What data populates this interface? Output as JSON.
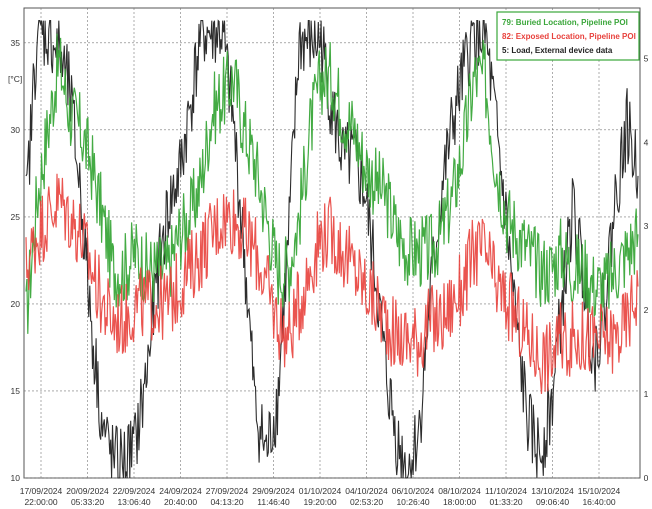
{
  "chart_data": {
    "type": "line",
    "title": "",
    "xlabel": "",
    "ylabel": "[°C]",
    "ylim": [
      10,
      37
    ],
    "y_ticks": [
      "10",
      "15",
      "20",
      "25",
      "30",
      "35"
    ],
    "y2_ticks": [
      "0",
      "1",
      "2",
      "3",
      "4",
      "5"
    ],
    "y2lim": [
      0,
      5.6
    ],
    "grid": true,
    "legend_position": "top-right",
    "x_ticks": [
      {
        "date": "17/09/2024",
        "time": "22:00:00"
      },
      {
        "date": "20/09/2024",
        "time": "05:33:20"
      },
      {
        "date": "22/09/2024",
        "time": "13:06:40"
      },
      {
        "date": "24/09/2024",
        "time": "20:40:00"
      },
      {
        "date": "27/09/2024",
        "time": "04:13:20"
      },
      {
        "date": "29/09/2024",
        "time": "11:46:40"
      },
      {
        "date": "01/10/2024",
        "time": "19:20:00"
      },
      {
        "date": "04/10/2024",
        "time": "02:53:20"
      },
      {
        "date": "06/10/2024",
        "time": "10:26:40"
      },
      {
        "date": "08/10/2024",
        "time": "18:00:00"
      },
      {
        "date": "11/10/2024",
        "time": "01:33:20"
      },
      {
        "date": "13/10/2024",
        "time": "09:06:40"
      },
      {
        "date": "15/10/2024",
        "time": "16:40:00"
      }
    ],
    "series": [
      {
        "name": "79: Buried Location, Pipeline POI",
        "color": "#3aa63a",
        "axis": "left",
        "x_days": [
          0,
          0.5,
          1,
          1.5,
          2,
          2.5,
          3,
          3.5,
          4,
          4.5,
          5,
          5.5,
          6,
          6.5,
          7,
          7.5,
          8,
          8.5,
          9,
          9.5,
          10,
          10.5,
          11,
          11.5,
          12,
          12.5,
          13,
          13.5,
          14,
          14.5,
          15,
          15.5,
          16,
          16.5,
          17,
          17.5,
          18,
          18.5,
          19,
          19.5,
          20,
          20.5,
          21,
          21.5,
          22,
          22.5,
          23,
          23.5,
          24,
          24.5,
          25,
          25.5,
          26,
          26.5,
          27,
          27.5,
          28
        ],
        "values": [
          19,
          26,
          30,
          34,
          31,
          30,
          28,
          25,
          22,
          22,
          23,
          22,
          22,
          22,
          24,
          25,
          27,
          31,
          32,
          33,
          30,
          28,
          25,
          22,
          22,
          25,
          30,
          33,
          33,
          31,
          30,
          28,
          27,
          26,
          24,
          23,
          23,
          23,
          24,
          26,
          29,
          33,
          33,
          28,
          25,
          24,
          23,
          22,
          22,
          23,
          22,
          22,
          21,
          21,
          22,
          23,
          24
        ]
      },
      {
        "name": "82: Exposed Location, Pipeline POI",
        "color": "#e8413c",
        "axis": "left",
        "x_days": [
          0,
          0.5,
          1,
          1.5,
          2,
          2.5,
          3,
          3.5,
          4,
          4.5,
          5,
          5.5,
          6,
          6.5,
          7,
          7.5,
          8,
          8.5,
          9,
          9.5,
          10,
          10.5,
          11,
          11.5,
          12,
          12.5,
          13,
          13.5,
          14,
          14.5,
          15,
          15.5,
          16,
          16.5,
          17,
          17.5,
          18,
          18.5,
          19,
          19.5,
          20,
          20.5,
          21,
          21.5,
          22,
          22.5,
          23,
          23.5,
          24,
          24.5,
          25,
          25.5,
          26,
          26.5,
          27,
          27.5,
          28
        ],
        "values": [
          22,
          24,
          25,
          26,
          25,
          24,
          22,
          20,
          19,
          19,
          20,
          20,
          20,
          20,
          21,
          22,
          23,
          24,
          25,
          25,
          24,
          23,
          21,
          19,
          18,
          20,
          22,
          24,
          24,
          23,
          22,
          21,
          20,
          19,
          18,
          18,
          18,
          19,
          19,
          20,
          21,
          23,
          23,
          21,
          20,
          19,
          18,
          17,
          17,
          18,
          18,
          18,
          18,
          18,
          18,
          19,
          21
        ]
      },
      {
        "name": "5: Load, External device data",
        "color": "#222222",
        "axis": "right",
        "x_days": [
          0,
          0.5,
          1,
          1.5,
          2,
          2.5,
          3,
          3.5,
          4,
          4.5,
          5,
          5.5,
          6,
          6.5,
          7,
          7.5,
          8,
          8.5,
          9,
          9.5,
          10,
          10.5,
          11,
          11.5,
          12,
          12.5,
          13,
          13.5,
          14,
          14.5,
          15,
          15.5,
          16,
          16.5,
          17,
          17.5,
          18,
          18.5,
          19,
          19.5,
          20,
          20.5,
          21,
          21.5,
          22,
          22.5,
          23,
          23.5,
          24,
          24.5,
          25,
          25.5,
          26,
          26.5,
          27,
          27.5,
          28
        ],
        "values": [
          3.2,
          5.3,
          5.3,
          5.1,
          4.6,
          3.4,
          1.8,
          0.6,
          0.2,
          0.2,
          0.4,
          1.2,
          2.4,
          3.2,
          3.6,
          4.4,
          5.3,
          5.3,
          5.3,
          4.2,
          2.6,
          0.8,
          0.3,
          0.9,
          2.8,
          5.2,
          5.2,
          5.2,
          4.4,
          3.8,
          3.8,
          3.4,
          2.4,
          1.2,
          0.4,
          0.1,
          0.6,
          2.2,
          3.4,
          4.2,
          4.8,
          5.3,
          5.3,
          4.2,
          3.0,
          1.6,
          0.6,
          0.3,
          0.8,
          2.0,
          3.2,
          2.4,
          1.4,
          2.2,
          3.4,
          4.2,
          3.6
        ]
      }
    ]
  }
}
